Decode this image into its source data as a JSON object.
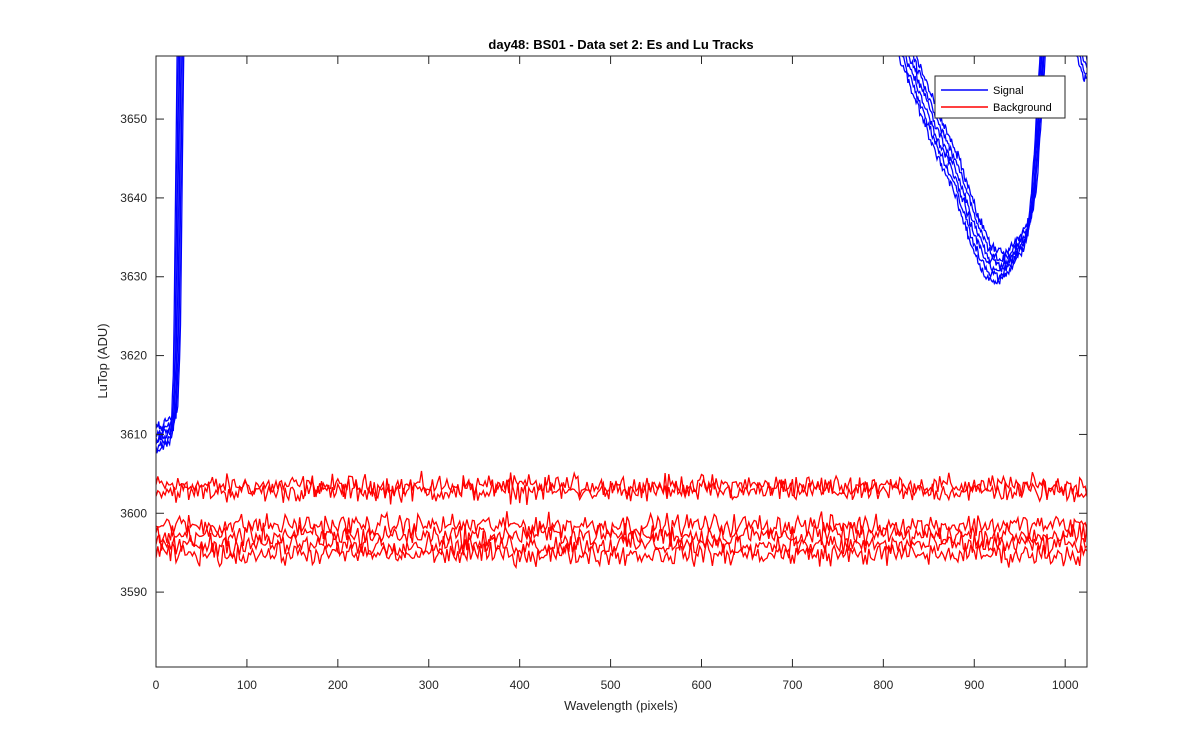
{
  "chart_data": {
    "type": "line",
    "title": "day48: BS01 - Data set 2: Es and Lu Tracks",
    "xlabel": "Wavelength (pixels)",
    "ylabel": "LuTop (ADU)",
    "xlim": [
      0,
      1024
    ],
    "ylim": [
      3580.5,
      3658
    ],
    "xticks": [
      0,
      100,
      200,
      300,
      400,
      500,
      600,
      700,
      800,
      900,
      1000
    ],
    "yticks": [
      3590,
      3600,
      3610,
      3620,
      3630,
      3640,
      3650
    ],
    "grid": false,
    "legend_position": "top-right",
    "legend": [
      "Signal",
      "Background"
    ],
    "colors": {
      "Signal": "#0000ff",
      "Background": "#ff0000"
    },
    "series": [
      {
        "name": "Signal",
        "color": "#0000ff",
        "curves": 6,
        "envelope": {
          "x": [
            0,
            10,
            20,
            23,
            25,
            27,
            29,
            780,
            800,
            820,
            840,
            860,
            880,
            900,
            915,
            930,
            945,
            960,
            965,
            970,
            975,
            980,
            990,
            1010,
            1024
          ],
          "y": [
            3609,
            3610,
            3611,
            3620,
            3640,
            3660,
            3680,
            3680,
            3668,
            3660,
            3654,
            3648,
            3643,
            3636,
            3632,
            3631,
            3633,
            3636,
            3640,
            3648,
            3658,
            3668,
            3670,
            3662,
            3657
          ]
        },
        "spread": 2.2
      },
      {
        "name": "Background",
        "color": "#ff0000",
        "curves": 6,
        "levels": [
          3603.5,
          3602.8,
          3598.5,
          3597.2,
          3596.0,
          3594.8
        ],
        "noise_amplitude": 1.6
      }
    ]
  }
}
